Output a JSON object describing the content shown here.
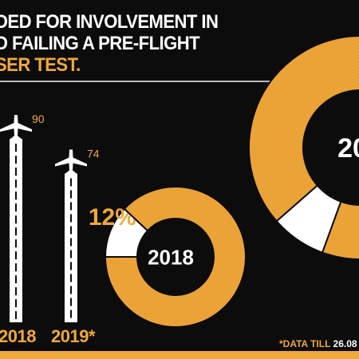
{
  "headline": {
    "line1": "DED FOR INVOLVEMENT IN",
    "line2": "D FAILING A PRE-FLIGHT",
    "line3_accent": "SER TEST",
    "line3_period": "."
  },
  "footnote": {
    "prefix": "*DATA TILL ",
    "date": "26.08"
  },
  "colors": {
    "background": "#0c0c0c",
    "accent": "#f0a83b",
    "white": "#ffffff",
    "rule": "#bdbdbd"
  },
  "chart_data": [
    {
      "type": "bar",
      "categories": [
        "2018",
        "2019*"
      ],
      "values": [
        90,
        74
      ],
      "value_labels": [
        "90",
        "74"
      ],
      "icon": "airplane-icon"
    },
    {
      "type": "pie",
      "center_label": "2018",
      "slices": [
        {
          "value": 12,
          "label": "12%"
        },
        {
          "value": 88,
          "label": ""
        }
      ]
    },
    {
      "type": "pie",
      "center_label": "20",
      "slices": [
        {
          "value": 8,
          "label": ""
        },
        {
          "value": 92,
          "label": ""
        }
      ]
    }
  ]
}
